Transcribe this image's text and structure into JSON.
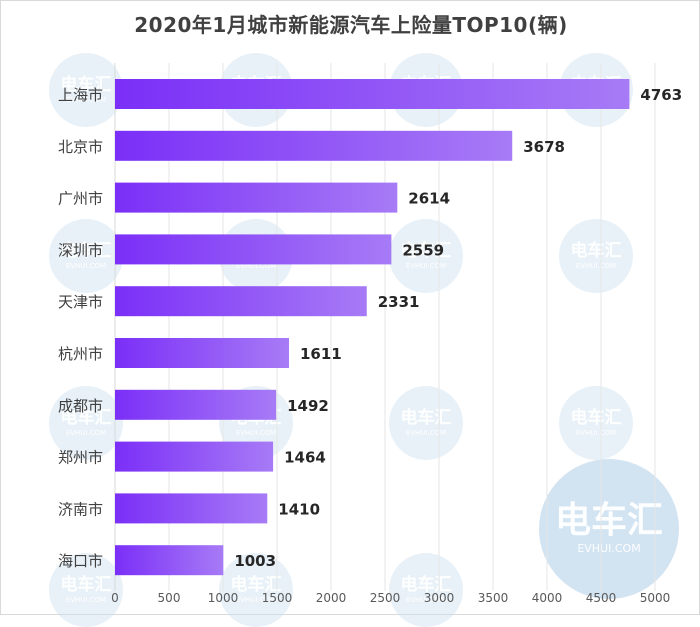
{
  "watermark": {
    "text": "电车汇",
    "sub": "EVHUI.COM"
  },
  "chart_data": {
    "type": "bar",
    "orientation": "horizontal",
    "title": "2020年1月城市新能源汽车上险量TOP10(辆)",
    "categories": [
      "上海市",
      "北京市",
      "广州市",
      "深圳市",
      "天津市",
      "杭州市",
      "成都市",
      "郑州市",
      "济南市",
      "海口市"
    ],
    "values": [
      4763,
      3678,
      2614,
      2559,
      2331,
      1611,
      1492,
      1464,
      1410,
      1003
    ],
    "xlim": [
      0,
      5000
    ],
    "xticks": [
      "0",
      "500",
      "1000",
      "1500",
      "2000",
      "2500",
      "3000",
      "3500",
      "4000",
      "4500",
      "5000"
    ],
    "grid": "vertical",
    "bar_gradient": [
      "#7b2ff7",
      "#a77bf6"
    ],
    "xlabel": "",
    "ylabel": ""
  }
}
